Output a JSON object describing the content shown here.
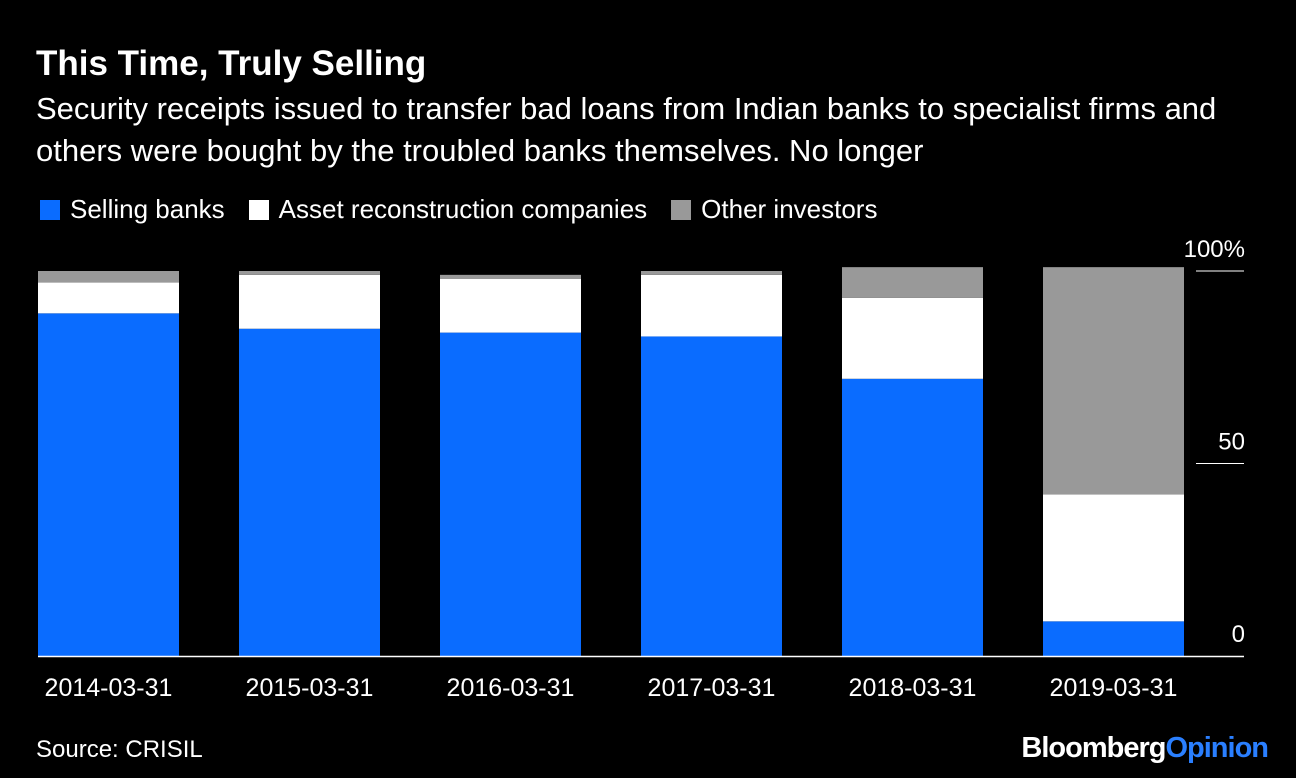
{
  "title": "This Time, Truly Selling",
  "subtitle": "Security receipts issued to transfer bad loans from Indian banks to specialist firms and others were bought by the troubled banks themselves. No longer",
  "source": "Source: CRISIL",
  "brand": {
    "part1": "Bloomberg",
    "part2": "Opinion"
  },
  "colors": {
    "background": "#000000",
    "selling_banks": "#0a6cff",
    "arc": "#ffffff",
    "other": "#999999"
  },
  "chart_data": {
    "type": "bar",
    "stacked": true,
    "categories": [
      "2014-03-31",
      "2015-03-31",
      "2016-03-31",
      "2017-03-31",
      "2018-03-31",
      "2019-03-31"
    ],
    "series": [
      {
        "name": "Selling banks",
        "color": "#0a6cff",
        "values": [
          89,
          85,
          84,
          83,
          72,
          9
        ]
      },
      {
        "name": "Asset reconstruction companies",
        "color": "#ffffff",
        "values": [
          8,
          14,
          14,
          16,
          21,
          33
        ]
      },
      {
        "name": "Other investors",
        "color": "#999999",
        "values": [
          3,
          1,
          1,
          1,
          8,
          59
        ]
      }
    ],
    "y_ticks": [
      "100%",
      "50",
      "0"
    ],
    "ylim": [
      0,
      100
    ],
    "y_axis_position": "right",
    "legend_position": "top-left",
    "grid": false
  }
}
